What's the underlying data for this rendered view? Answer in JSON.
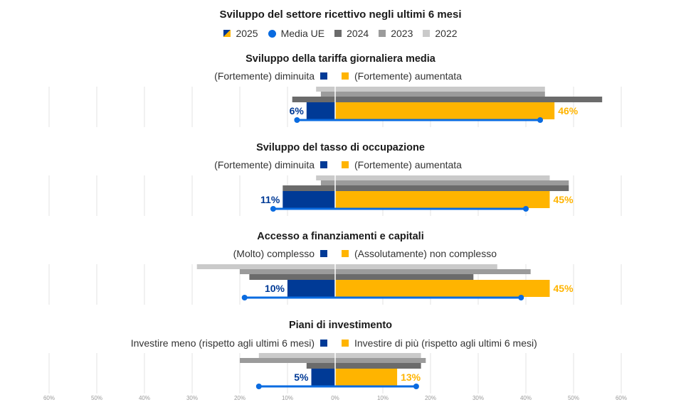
{
  "title": "Sviluppo del settore ricettivo negli ultimi 6 mesi",
  "legend": [
    {
      "key": "2025",
      "label": "2025",
      "icon": "split-square-icon"
    },
    {
      "key": "eu",
      "label": "Media UE",
      "icon": "dot-icon"
    },
    {
      "key": "2024",
      "label": "2024",
      "icon": "square-icon"
    },
    {
      "key": "2023",
      "label": "2023",
      "icon": "square-icon"
    },
    {
      "key": "2022",
      "label": "2022",
      "icon": "square-icon"
    }
  ],
  "colors": {
    "negative_2025": "#003a96",
    "positive_2025": "#ffb400",
    "y2024": "#6b6b6b",
    "y2023": "#9b9b9b",
    "y2022": "#cacaca",
    "eu": "#0a6be0",
    "grid": "#ececec"
  },
  "chart_data": {
    "type": "bar",
    "subtype": "diverging-horizontal",
    "title": "Sviluppo del settore ricettivo negli ultimi 6 mesi",
    "xlim": [
      -60,
      60
    ],
    "xticks": [
      "60%",
      "50%",
      "40%",
      "30%",
      "20%",
      "10%",
      "0%",
      "10%",
      "20%",
      "30%",
      "40%",
      "50%",
      "60%"
    ],
    "grid": true,
    "legend_position": "top-center",
    "panels": [
      {
        "title": "Sviluppo della tariffa giornaliera media",
        "negative_label": "(Fortemente) diminuita",
        "positive_label": "(Fortemente) aumentata",
        "series": [
          {
            "name": "2022",
            "negative": 4,
            "positive": 44
          },
          {
            "name": "2023",
            "negative": 3,
            "positive": 44
          },
          {
            "name": "2024",
            "negative": 9,
            "positive": 56
          },
          {
            "name": "2025",
            "negative": 6,
            "positive": 46
          }
        ],
        "eu_average": {
          "negative": 8,
          "positive": 43
        },
        "labels": {
          "negative": "6%",
          "positive": "46%"
        }
      },
      {
        "title": "Sviluppo del tasso di occupazione",
        "negative_label": "(Fortemente) diminuita",
        "positive_label": "(Fortemente) aumentata",
        "series": [
          {
            "name": "2022",
            "negative": 4,
            "positive": 45
          },
          {
            "name": "2023",
            "negative": 3,
            "positive": 49
          },
          {
            "name": "2024",
            "negative": 11,
            "positive": 49
          },
          {
            "name": "2025",
            "negative": 11,
            "positive": 45
          }
        ],
        "eu_average": {
          "negative": 13,
          "positive": 40
        },
        "labels": {
          "negative": "11%",
          "positive": "45%"
        }
      },
      {
        "title": "Accesso a finanziamenti e capitali",
        "negative_label": "(Molto) complesso",
        "positive_label": "(Assolutamente) non complesso",
        "series": [
          {
            "name": "2022",
            "negative": 29,
            "positive": 34
          },
          {
            "name": "2023",
            "negative": 20,
            "positive": 41
          },
          {
            "name": "2024",
            "negative": 18,
            "positive": 29
          },
          {
            "name": "2025",
            "negative": 10,
            "positive": 45
          }
        ],
        "eu_average": {
          "negative": 19,
          "positive": 39
        },
        "labels": {
          "negative": "10%",
          "positive": "45%"
        }
      },
      {
        "title": "Piani di investimento",
        "negative_label": "Investire meno (rispetto agli ultimi 6 mesi)",
        "positive_label": "Investire di più (rispetto agli ultimi 6 mesi)",
        "series": [
          {
            "name": "2022",
            "negative": 16,
            "positive": 18
          },
          {
            "name": "2023",
            "negative": 20,
            "positive": 19
          },
          {
            "name": "2024",
            "negative": 6,
            "positive": 18
          },
          {
            "name": "2025",
            "negative": 5,
            "positive": 13
          }
        ],
        "eu_average": {
          "negative": 16,
          "positive": 17
        },
        "labels": {
          "negative": "5%",
          "positive": "13%"
        }
      }
    ]
  }
}
